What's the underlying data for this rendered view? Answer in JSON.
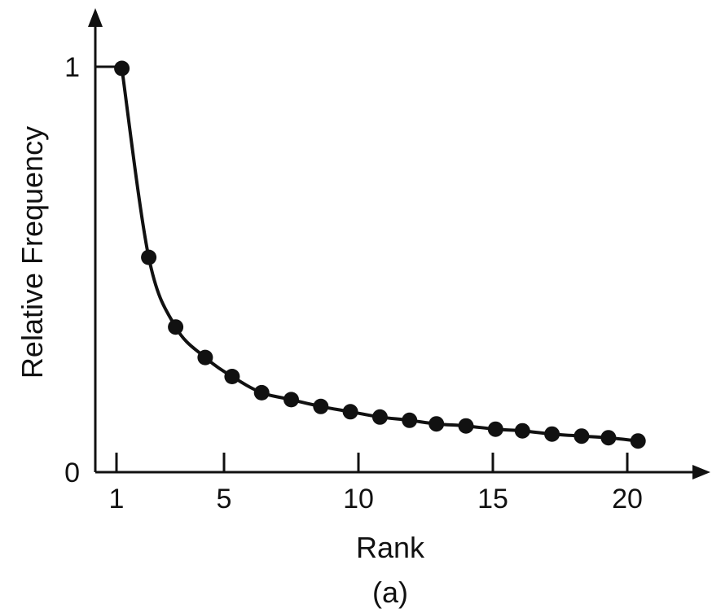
{
  "chart_data": {
    "type": "line",
    "xlabel": "Rank",
    "ylabel": "Relative Frequency",
    "caption": "(a)",
    "x_ticks": [
      "1",
      "5",
      "10",
      "15",
      "20"
    ],
    "x_tick_values": [
      1,
      5,
      10,
      15,
      20
    ],
    "y_ticks": [
      "0",
      "1"
    ],
    "y_tick_values": [
      0,
      1
    ],
    "xlim": [
      1,
      20
    ],
    "ylim": [
      0,
      1
    ],
    "grid": false,
    "series": [
      {
        "marker": "filled-circle",
        "color": "#111111",
        "curve": "smooth fit",
        "x": [
          1.2,
          2.2,
          3.2,
          4.3,
          5.3,
          6.4,
          7.5,
          8.6,
          9.7,
          10.8,
          11.9,
          12.9,
          14.0,
          15.1,
          16.1,
          17.2,
          18.3,
          19.3,
          20.4
        ],
        "y": [
          0.996,
          0.53,
          0.358,
          0.283,
          0.236,
          0.196,
          0.179,
          0.162,
          0.149,
          0.136,
          0.128,
          0.119,
          0.114,
          0.106,
          0.102,
          0.094,
          0.089,
          0.085,
          0.077
        ]
      }
    ]
  }
}
